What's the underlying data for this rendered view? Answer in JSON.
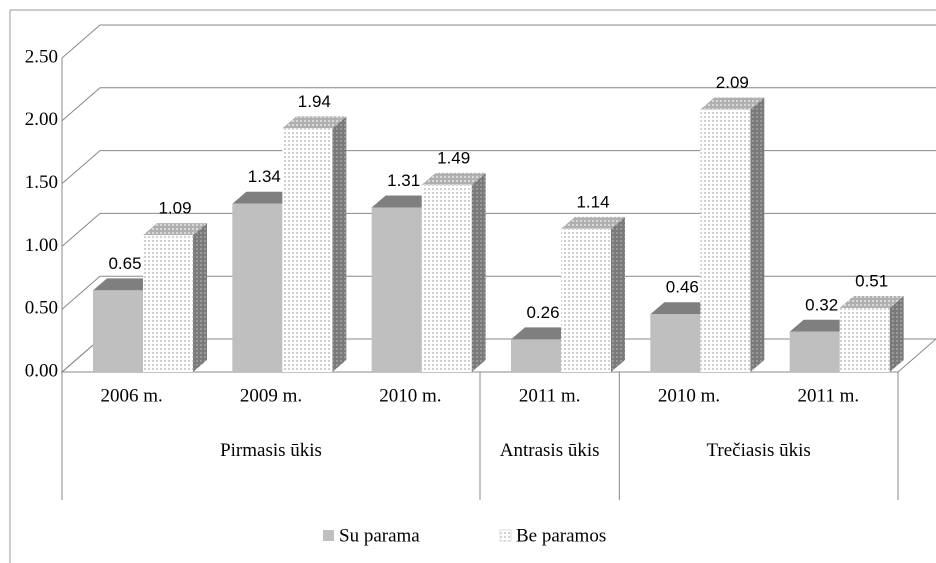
{
  "chart_data": {
    "type": "bar",
    "groups": [
      {
        "name": "Pirmasis ūkis",
        "categories": [
          "2006 m.",
          "2009 m.",
          "2010 m."
        ]
      },
      {
        "name": "Antrasis ūkis",
        "categories": [
          "2011 m."
        ]
      },
      {
        "name": "Trečiasis ūkis",
        "categories": [
          "2010 m.",
          "2011 m."
        ]
      }
    ],
    "series": [
      {
        "name": "Su parama",
        "color": "#bfbfbf",
        "values": [
          0.65,
          1.34,
          1.31,
          0.26,
          0.46,
          0.32
        ]
      },
      {
        "name": "Be paramos",
        "color": "#ffffff",
        "values": [
          1.09,
          1.94,
          1.49,
          1.14,
          2.09,
          0.51
        ]
      }
    ],
    "ylim": [
      0,
      2.5
    ],
    "yticks": [
      {
        "value": 0,
        "label": "0.00"
      },
      {
        "value": 0.5,
        "label": "0.50"
      },
      {
        "value": 1,
        "label": "1.00"
      },
      {
        "value": 1.5,
        "label": "1.50"
      },
      {
        "value": 2,
        "label": "2.00"
      },
      {
        "value": 2.5,
        "label": "2.50"
      }
    ],
    "grid": true,
    "legend": "bottom"
  }
}
